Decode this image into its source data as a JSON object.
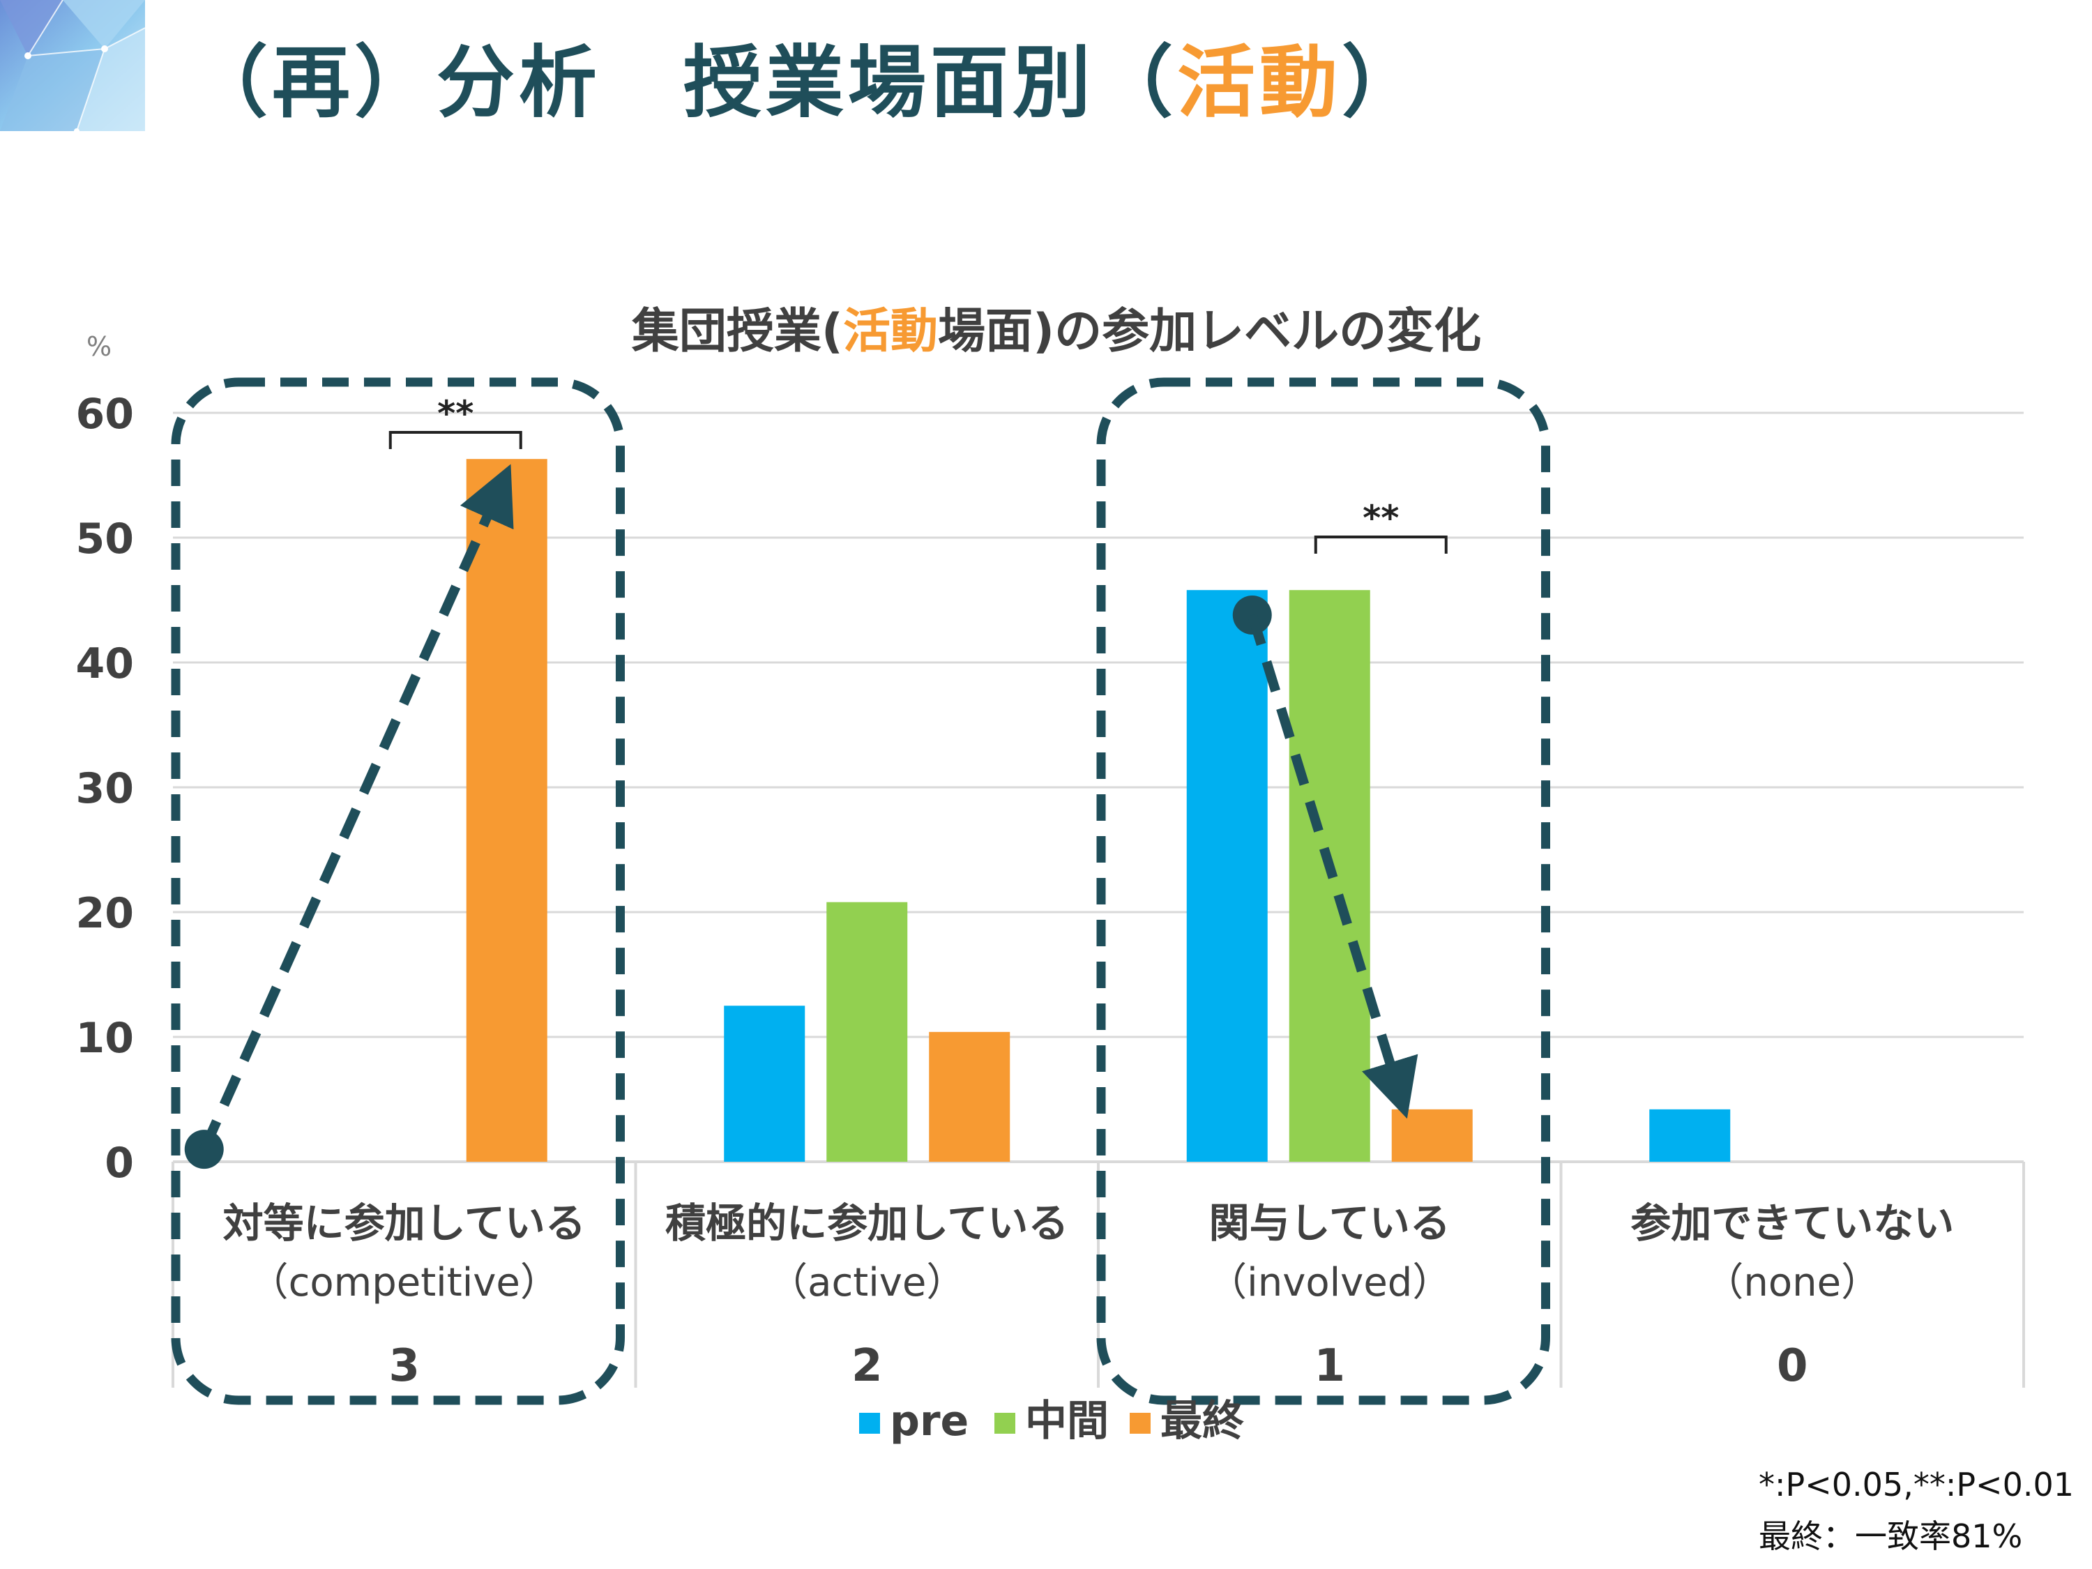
{
  "slide": {
    "title_prefix": "（再）分析　授業場面別（",
    "title_highlight": "活動",
    "title_suffix": "）"
  },
  "colors": {
    "pre": "#00b0f0",
    "mid": "#92d050",
    "final": "#f79a32",
    "highlight": "#f79a32",
    "annotation": "#1f4e5a",
    "grid": "#d9d9d9",
    "axis_text": "#404040"
  },
  "chart_data": {
    "type": "bar",
    "title_prefix": "集団授業(",
    "title_highlight": "活動",
    "title_suffix": "場面)の参加レベルの変化",
    "ylabel": "%",
    "ylim": [
      0,
      60
    ],
    "yticks": [
      "0",
      "10",
      "20",
      "30",
      "40",
      "50",
      "60"
    ],
    "grid": true,
    "legend_position": "bottom",
    "categories": [
      {
        "label": "対等に参加している",
        "sublabel": "（competitive）",
        "level": "3"
      },
      {
        "label": "積極的に参加している",
        "sublabel": "（active）",
        "level": "2"
      },
      {
        "label": "関与している",
        "sublabel": "（involved）",
        "level": "1"
      },
      {
        "label": "参加できていない",
        "sublabel": "（none）",
        "level": "0"
      }
    ],
    "series": [
      {
        "name": "pre",
        "color_key": "pre",
        "values": [
          0,
          12.5,
          45.8,
          4.2
        ]
      },
      {
        "name": "中間",
        "color_key": "mid",
        "values": [
          0,
          20.8,
          45.8,
          0
        ]
      },
      {
        "name": "最終",
        "color_key": "final",
        "values": [
          56.3,
          10.4,
          4.2,
          0
        ]
      }
    ],
    "annotations": {
      "significance": [
        {
          "category_index": 0,
          "label": "**"
        },
        {
          "category_index": 2,
          "label": "**"
        }
      ],
      "highlight_boxes": [
        0,
        2
      ],
      "arrows": [
        {
          "from": {
            "category_index": 0,
            "series_index": 0,
            "value": 1
          },
          "to": {
            "category_index": 0,
            "series_index": 2,
            "value": 56.3
          }
        },
        {
          "from": {
            "category_index": 2,
            "series_index": 0,
            "value": 43.8
          },
          "to": {
            "category_index": 2,
            "series_index": 2,
            "value": 4.2
          }
        }
      ]
    }
  },
  "footnotes": {
    "significance": "*:P<0.05,**:P<0.01",
    "agreement": "最終：一致率81%"
  }
}
